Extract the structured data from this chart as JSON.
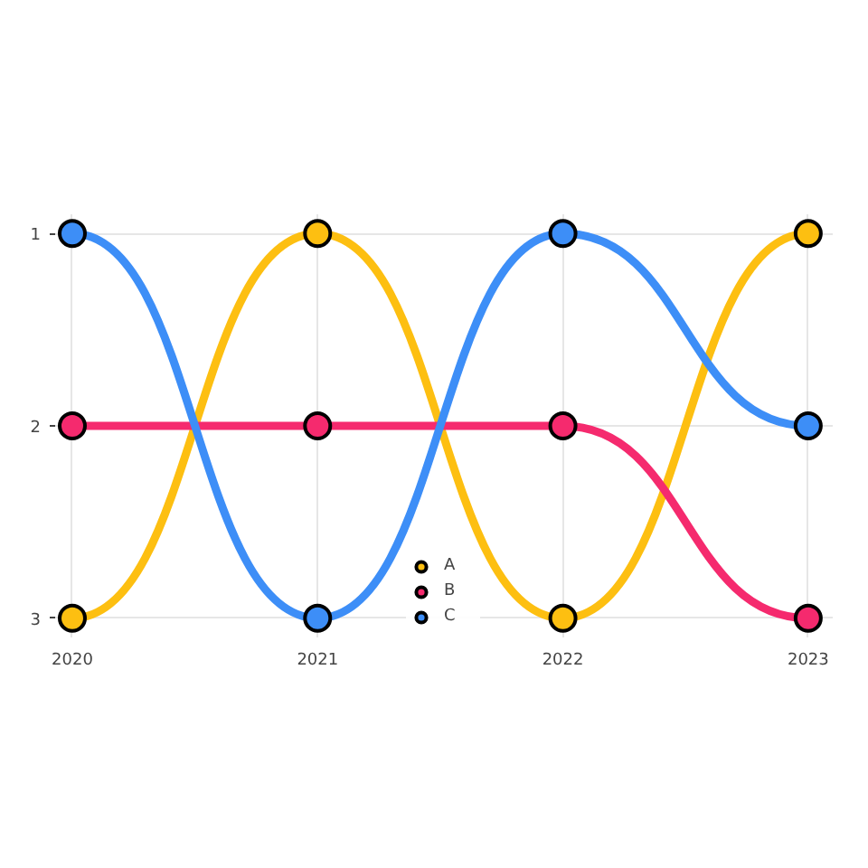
{
  "chart_data": {
    "type": "line",
    "x": [
      2020,
      2021,
      2022,
      2023
    ],
    "xlim": [
      2019.93,
      2023.1
    ],
    "xticks": [
      2020,
      2021,
      2022,
      2023
    ],
    "ylim": [
      3.1,
      0.9
    ],
    "yticks": [
      1,
      2,
      3
    ],
    "grid": true,
    "legend": "bottom",
    "marker": "circle",
    "line_style": "solid",
    "series": [
      {
        "name": "A",
        "color": "#fdbf11",
        "values": [
          3,
          1,
          3,
          1
        ]
      },
      {
        "name": "B",
        "color": "#f52a6e",
        "values": [
          2,
          2,
          2,
          3
        ]
      },
      {
        "name": "C",
        "color": "#3d8ef7",
        "values": [
          1,
          3,
          1,
          2
        ]
      }
    ]
  }
}
